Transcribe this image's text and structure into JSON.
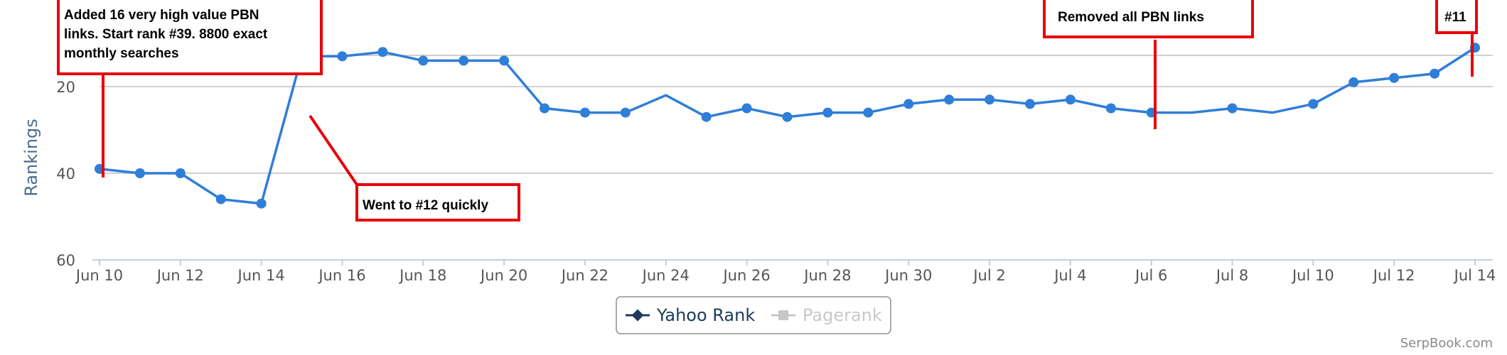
{
  "chart_data": {
    "type": "line",
    "ylabel": "Rankings",
    "y_reversed": true,
    "ylim": [
      60,
      0
    ],
    "yticks": [
      20,
      40,
      60
    ],
    "grid": true,
    "x": [
      "Jun 10",
      "Jun 11",
      "Jun 12",
      "Jun 13",
      "Jun 14",
      "Jun 15",
      "Jun 16",
      "Jun 17",
      "Jun 18",
      "Jun 19",
      "Jun 20",
      "Jun 21",
      "Jun 22",
      "Jun 23",
      "Jun 24",
      "Jun 25",
      "Jun 26",
      "Jun 27",
      "Jun 28",
      "Jun 29",
      "Jun 30",
      "Jul 1",
      "Jul 2",
      "Jul 3",
      "Jul 4",
      "Jul 5",
      "Jul 6",
      "Jul 7",
      "Jul 8",
      "Jul 9",
      "Jul 10",
      "Jul 11",
      "Jul 12",
      "Jul 13",
      "Jul 14"
    ],
    "xtick_labels": [
      "Jun 10",
      "Jun 12",
      "Jun 14",
      "Jun 16",
      "Jun 18",
      "Jun 20",
      "Jun 22",
      "Jun 24",
      "Jun 26",
      "Jun 28",
      "Jun 30",
      "Jul 2",
      "Jul 4",
      "Jul 6",
      "Jul 8",
      "Jul 10",
      "Jul 12",
      "Jul 14"
    ],
    "series": [
      {
        "name": "Yahoo Rank",
        "color": "#2f7ed8",
        "values": [
          39,
          40,
          40,
          46,
          47,
          13,
          13,
          12,
          14,
          14,
          14,
          25,
          26,
          26,
          22,
          27,
          25,
          27,
          26,
          26,
          24,
          23,
          23,
          24,
          23,
          25,
          26,
          26,
          25,
          26,
          24,
          19,
          18,
          17,
          11
        ],
        "markers": [
          true,
          true,
          true,
          true,
          true,
          false,
          true,
          true,
          true,
          true,
          true,
          true,
          true,
          true,
          false,
          true,
          true,
          true,
          true,
          true,
          true,
          true,
          true,
          true,
          true,
          true,
          true,
          false,
          true,
          false,
          true,
          true,
          true,
          true,
          true
        ]
      }
    ],
    "legend": {
      "placement": "bottom-center",
      "items": [
        {
          "label": "Yahoo Rank",
          "color": "#1f3a5a",
          "icon": "diamond-line-icon",
          "active": true
        },
        {
          "label": "Pagerank",
          "color": "#c8c8c8",
          "icon": "square-line-icon",
          "active": false
        }
      ]
    },
    "annotations": [
      {
        "lines": [
          "Added 16 very high value PBN",
          "links. Start rank #39. 8800 exact",
          "monthly searches"
        ],
        "x": "Jun 10",
        "y": 39
      },
      {
        "lines": [
          "Went to #12 quickly"
        ],
        "x": "Jun 15",
        "y": 13
      },
      {
        "lines": [
          "Removed all PBN links"
        ],
        "x": "Jul 6",
        "y": 26
      },
      {
        "lines": [
          "#11"
        ],
        "x": "Jul 14",
        "y": 11
      }
    ],
    "credit": "SerpBook.com",
    "accent_color": "#e8000b"
  }
}
